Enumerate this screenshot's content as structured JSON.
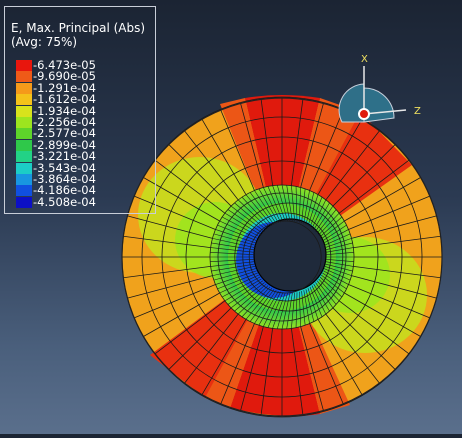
{
  "legend": {
    "title": "E, Max. Principal (Abs)",
    "avg": "(Avg: 75%)",
    "values": [
      "-6.473e-05",
      "-9.690e-05",
      "-1.291e-04",
      "-1.612e-04",
      "-1.934e-04",
      "-2.256e-04",
      "-2.577e-04",
      "-2.899e-04",
      "-3.221e-04",
      "-3.543e-04",
      "-3.864e-04",
      "-4.186e-04",
      "-4.508e-04"
    ],
    "colors": [
      "#e8160d",
      "#ef5a18",
      "#f59a1a",
      "#f4c21a",
      "#d8e31c",
      "#9de51f",
      "#5ed42a",
      "#2fc84a",
      "#22d286",
      "#1ccdc6",
      "#1896e0",
      "#1050e0",
      "#0c10c6"
    ]
  },
  "triad": {
    "axis_x": "X",
    "axis_z": "Z"
  },
  "colors": {
    "red": "#dd1a0d",
    "orange_red": "#ec5616",
    "orange": "#f0a21c",
    "yellow_green": "#c6dd1e",
    "green": "#3bcc33",
    "background": "#2b3a52"
  },
  "model_icon": "hollow-disc-fea-mesh"
}
